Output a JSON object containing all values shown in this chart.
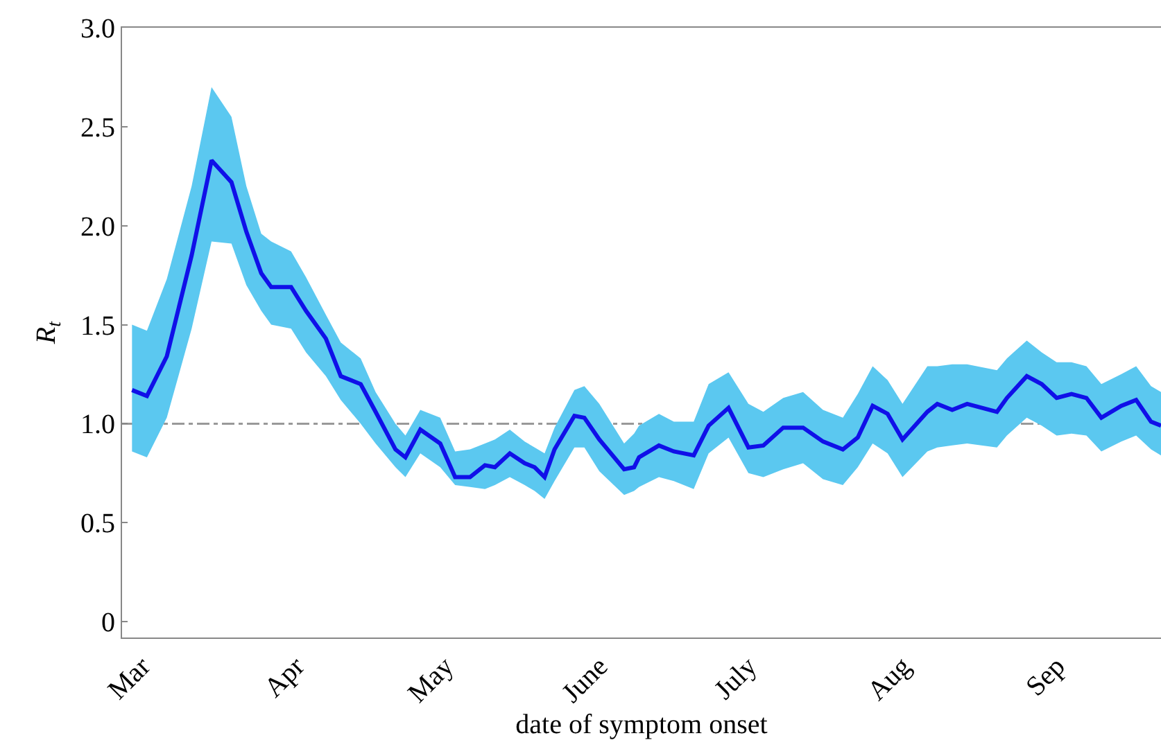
{
  "chart_data": {
    "type": "line",
    "xlabel": "date of symptom onset",
    "ylabel": "R$_{t}$",
    "xlim": [
      "--02-25",
      "--09-22"
    ],
    "xticks": [
      {
        "value": "--03-01",
        "label": "Mar"
      },
      {
        "value": "--04-01",
        "label": "Apr"
      },
      {
        "value": "--05-01",
        "label": "May"
      },
      {
        "value": "--06-01",
        "label": "June"
      },
      {
        "value": "--07-01",
        "label": "July"
      },
      {
        "value": "--08-01",
        "label": "Aug"
      },
      {
        "value": "--09-01",
        "label": "Sep"
      }
    ],
    "ylim": [
      -0.08,
      3.0
    ],
    "yticks": [
      0,
      0.5,
      {
        "value": 1,
        "label": "1.0"
      },
      1.5,
      {
        "value": 2,
        "label": "2.0"
      },
      2.5,
      {
        "value": 3,
        "label": "3.0"
      }
    ],
    "grid": false,
    "marker": "none",
    "line_style": "solid",
    "ref_lines": [
      {
        "axis": "y",
        "value": 1,
        "color": "#999999",
        "line_style": "dashdot"
      }
    ],
    "series": [
      {
        "color": "#1010e8",
        "x": [
          "--02-27",
          "--03-02",
          "--03-06",
          "--03-11",
          "--03-15",
          "--03-19",
          "--03-22",
          "--03-25",
          "--03-27",
          "--03-31",
          "--04-03",
          "--04-07",
          "--04-10",
          "--04-14",
          "--04-17",
          "--04-21",
          "--04-23",
          "--04-26",
          "--04-30",
          "--05-03",
          "--05-06",
          "--05-09",
          "--05-11",
          "--05-14",
          "--05-17",
          "--05-19",
          "--05-21",
          "--05-23",
          "--05-27",
          "--05-29",
          "--06-01",
          "--06-06",
          "--06-08",
          "--06-09",
          "--06-13",
          "--06-16",
          "--06-20",
          "--06-23",
          "--06-27",
          "--07-01",
          "--07-04",
          "--07-08",
          "--07-12",
          "--07-16",
          "--07-20",
          "--07-23",
          "--07-26",
          "--07-29",
          "--08-01",
          "--08-06",
          "--08-08",
          "--08-11",
          "--08-14",
          "--08-20",
          "--08-22",
          "--08-26",
          "--08-29",
          "--09-01",
          "--09-04",
          "--09-07",
          "--09-10",
          "--09-14",
          "--09-17",
          "--09-20",
          "--09-22"
        ],
        "values": [
          1.17,
          1.14,
          1.34,
          1.85,
          2.33,
          2.22,
          1.97,
          1.76,
          1.69,
          1.69,
          1.57,
          1.43,
          1.24,
          1.2,
          1.06,
          0.87,
          0.83,
          0.97,
          0.9,
          0.73,
          0.73,
          0.79,
          0.78,
          0.85,
          0.8,
          0.78,
          0.73,
          0.87,
          1.04,
          1.03,
          0.92,
          0.77,
          0.78,
          0.83,
          0.89,
          0.86,
          0.84,
          0.99,
          1.08,
          0.88,
          0.89,
          0.98,
          0.98,
          0.91,
          0.87,
          0.93,
          1.09,
          1.05,
          0.92,
          1.06,
          1.1,
          1.07,
          1.1,
          1.06,
          1.13,
          1.24,
          1.2,
          1.13,
          1.15,
          1.13,
          1.03,
          1.09,
          1.12,
          1.01,
          0.99
        ],
        "lower": [
          0.86,
          0.83,
          1.03,
          1.48,
          1.92,
          1.91,
          1.7,
          1.57,
          1.5,
          1.48,
          1.36,
          1.24,
          1.12,
          1.0,
          0.9,
          0.78,
          0.73,
          0.85,
          0.78,
          0.69,
          0.68,
          0.67,
          0.69,
          0.73,
          0.69,
          0.66,
          0.62,
          0.71,
          0.88,
          0.88,
          0.76,
          0.64,
          0.66,
          0.68,
          0.73,
          0.71,
          0.67,
          0.85,
          0.93,
          0.75,
          0.73,
          0.77,
          0.8,
          0.72,
          0.69,
          0.78,
          0.9,
          0.85,
          0.73,
          0.86,
          0.88,
          0.89,
          0.9,
          0.88,
          0.94,
          1.03,
          0.99,
          0.94,
          0.95,
          0.94,
          0.86,
          0.91,
          0.94,
          0.87,
          0.84
        ],
        "upper": [
          1.5,
          1.47,
          1.73,
          2.2,
          2.7,
          2.55,
          2.2,
          1.96,
          1.92,
          1.87,
          1.74,
          1.55,
          1.41,
          1.33,
          1.16,
          1.0,
          0.94,
          1.07,
          1.03,
          0.86,
          0.87,
          0.9,
          0.92,
          0.97,
          0.91,
          0.88,
          0.85,
          0.98,
          1.17,
          1.19,
          1.1,
          0.9,
          0.95,
          0.99,
          1.05,
          1.01,
          1.01,
          1.2,
          1.26,
          1.1,
          1.06,
          1.13,
          1.16,
          1.07,
          1.03,
          1.15,
          1.29,
          1.22,
          1.1,
          1.29,
          1.29,
          1.3,
          1.3,
          1.27,
          1.33,
          1.42,
          1.36,
          1.31,
          1.31,
          1.29,
          1.2,
          1.25,
          1.29,
          1.19,
          1.16
        ]
      }
    ]
  }
}
